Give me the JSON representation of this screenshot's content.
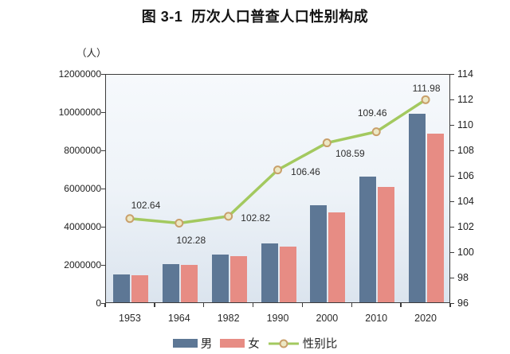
{
  "page": {
    "title": "图 3-1  历次人口普查人口性别构成"
  },
  "chart_data": {
    "type": "bar",
    "title": "图 3-1  历次人口普查人口性别构成",
    "unit_label": "（人）",
    "right_axis_title": "性别比",
    "categories": [
      "1953",
      "1964",
      "1982",
      "1990",
      "2000",
      "2010",
      "2020"
    ],
    "series": [
      {
        "name": "男",
        "type": "bar",
        "axis": "left",
        "color": "#5d7795",
        "values": [
          1450000,
          2000000,
          2500000,
          3100000,
          5100000,
          6600000,
          9880000
        ]
      },
      {
        "name": "女",
        "type": "bar",
        "axis": "left",
        "color": "#e78c84",
        "values": [
          1413000,
          1955000,
          2431000,
          2912000,
          4697000,
          6030000,
          8823000
        ]
      },
      {
        "name": "性别比",
        "type": "line",
        "axis": "right",
        "color": "#a3c95f",
        "marker_stroke": "#c9a06b",
        "marker_fill": "#ece8c4",
        "values": [
          102.64,
          102.28,
          102.82,
          106.46,
          108.59,
          109.46,
          111.98
        ],
        "point_labels": [
          "102.64",
          "102.28",
          "102.82",
          "106.46",
          "108.59",
          "109.46",
          "111.98"
        ]
      }
    ],
    "left_axis": {
      "min": 0,
      "max": 12000000,
      "ticks": [
        "12000000",
        "10000000",
        "8000000",
        "6000000",
        "4000000",
        "2000000",
        "0"
      ]
    },
    "right_axis": {
      "min": 96,
      "max": 114,
      "ticks": [
        "114",
        "112",
        "110",
        "108",
        "106",
        "104",
        "102",
        "100",
        "98",
        "96"
      ]
    },
    "legend_position": "bottom",
    "grid": false
  },
  "colors": {
    "male_bar": "#5d7795",
    "female_bar": "#e78c84",
    "ratio_line": "#a3c95f",
    "marker_ring": "#c9a06b",
    "axis": "#3c3c3c"
  }
}
